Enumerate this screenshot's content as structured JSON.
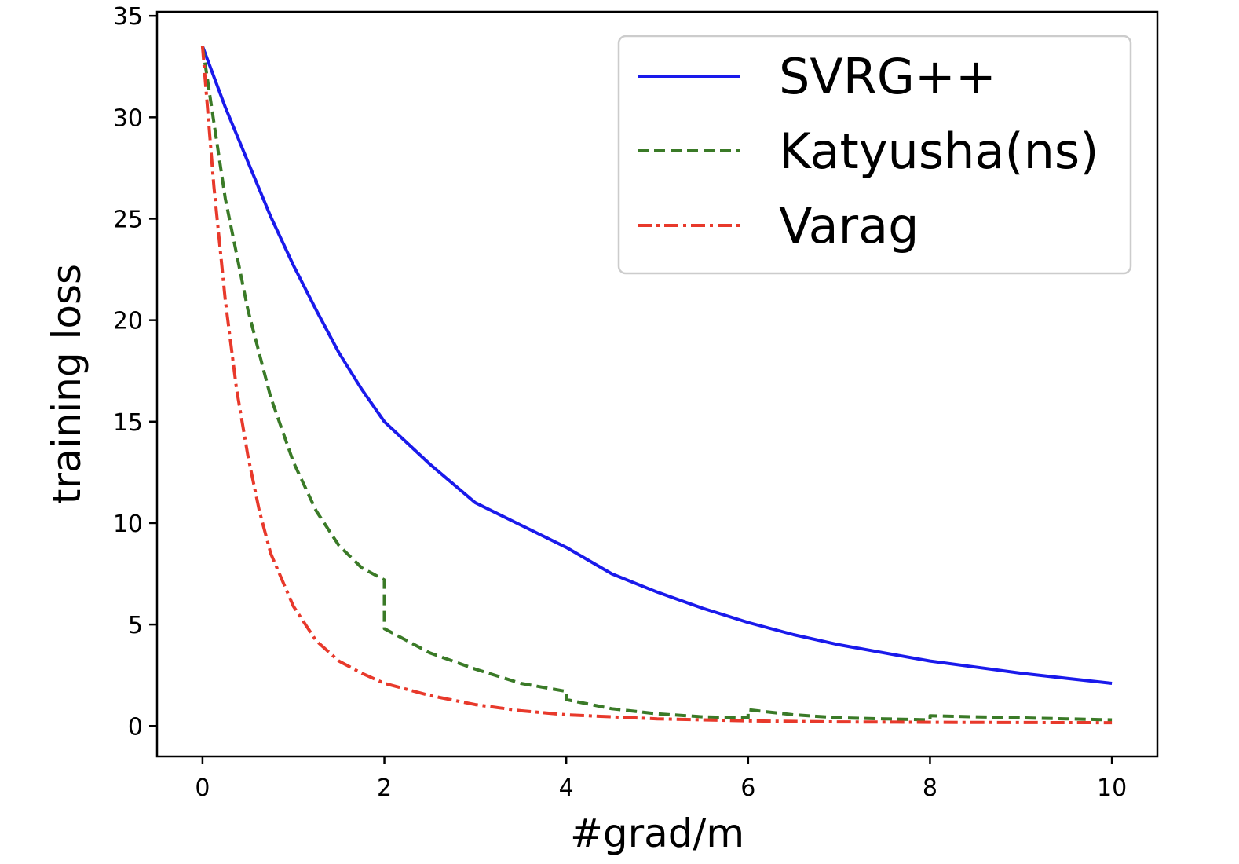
{
  "chart_data": {
    "type": "line",
    "title": "",
    "xlabel": "#grad/m",
    "ylabel": "training loss",
    "xlim": [
      -0.5,
      10.5
    ],
    "ylim": [
      -1.5,
      35.2
    ],
    "xticks": [
      0,
      2,
      4,
      6,
      8,
      10
    ],
    "yticks": [
      0,
      5,
      10,
      15,
      20,
      25,
      30,
      35
    ],
    "grid": false,
    "legend": {
      "position": "top-right"
    },
    "series": [
      {
        "name": "SVRG++",
        "color": "#1a1aeb",
        "style": "solid",
        "x": [
          0,
          0.25,
          0.5,
          0.75,
          1,
          1.25,
          1.5,
          1.75,
          2,
          2.5,
          3,
          3.5,
          4,
          4.5,
          5,
          5.5,
          6,
          6.5,
          7,
          7.5,
          8,
          8.5,
          9,
          9.5,
          10
        ],
        "y": [
          33.5,
          30.5,
          27.8,
          25.1,
          22.7,
          20.5,
          18.4,
          16.6,
          15.0,
          12.9,
          11.0,
          9.9,
          8.8,
          7.5,
          6.6,
          5.8,
          5.1,
          4.5,
          4.0,
          3.6,
          3.2,
          2.9,
          2.6,
          2.35,
          2.1
        ]
      },
      {
        "name": "Katyusha(ns)",
        "color": "#3a7a27",
        "style": "dashed",
        "x": [
          0,
          0.25,
          0.5,
          0.75,
          1,
          1.25,
          1.5,
          1.75,
          2,
          2,
          2.5,
          3,
          3.5,
          4,
          4,
          4.5,
          5,
          5.5,
          6,
          6,
          6.5,
          7,
          7.5,
          8,
          8,
          8.5,
          9,
          9.5,
          10
        ],
        "y": [
          33.5,
          26.0,
          20.5,
          16.2,
          13.0,
          10.6,
          8.9,
          7.8,
          7.2,
          4.8,
          3.6,
          2.8,
          2.1,
          1.7,
          1.3,
          0.85,
          0.6,
          0.45,
          0.4,
          0.8,
          0.55,
          0.4,
          0.35,
          0.3,
          0.5,
          0.45,
          0.4,
          0.35,
          0.3
        ]
      },
      {
        "name": "Varag",
        "color": "#e8392b",
        "style": "dashdot",
        "x": [
          0,
          0.125,
          0.25,
          0.375,
          0.5,
          0.625,
          0.75,
          1,
          1.25,
          1.5,
          1.75,
          2,
          2.5,
          3,
          3.5,
          4,
          5,
          6,
          7,
          8,
          9,
          10
        ],
        "y": [
          33.5,
          26.6,
          21.0,
          16.6,
          13.3,
          10.6,
          8.5,
          5.9,
          4.2,
          3.2,
          2.6,
          2.1,
          1.5,
          1.05,
          0.75,
          0.55,
          0.35,
          0.25,
          0.2,
          0.18,
          0.17,
          0.16
        ]
      }
    ]
  }
}
